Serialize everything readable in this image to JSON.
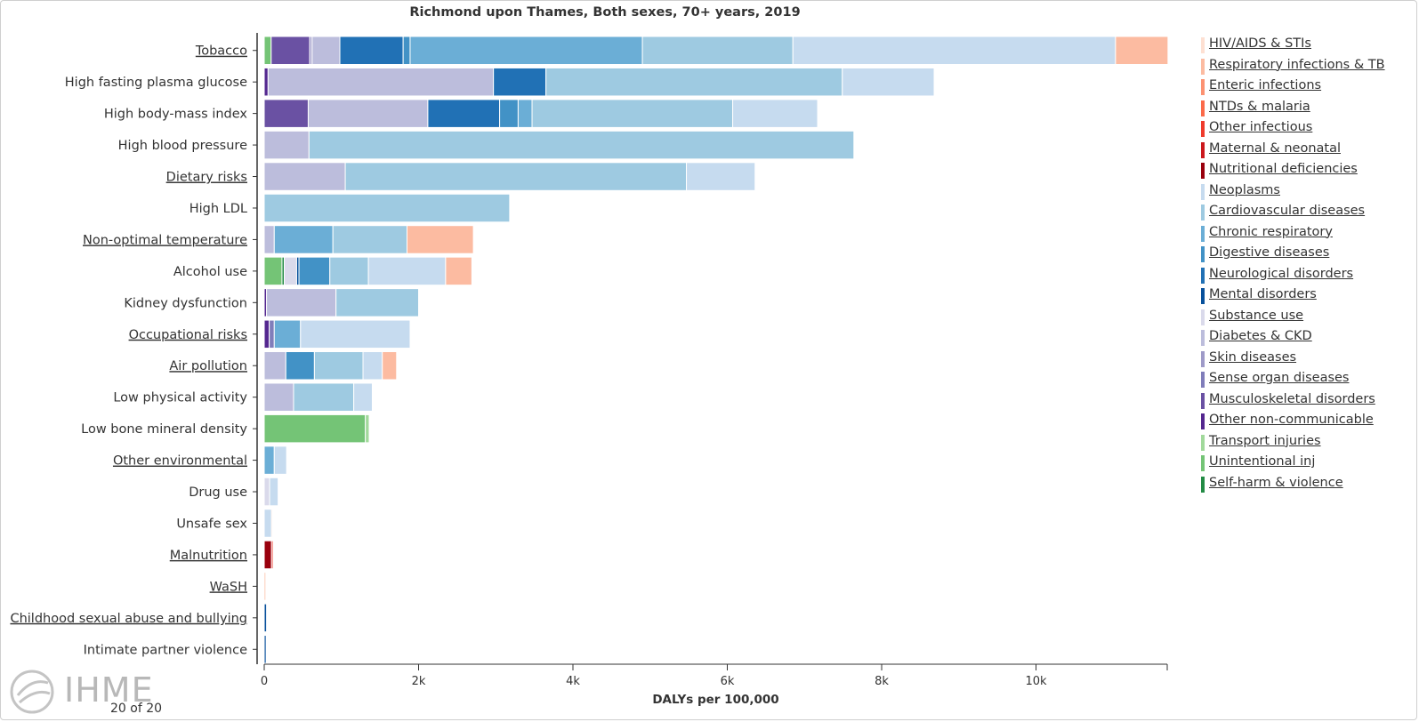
{
  "chart_data": {
    "type": "bar",
    "orientation": "horizontal",
    "stacked": true,
    "title": "Richmond upon Thames, Both sexes, 70+ years, 2019",
    "xlabel": "DALYs per 100,000",
    "ylabel": "",
    "xlim": [
      0,
      11700
    ],
    "x_ticks": [
      0,
      2000,
      4000,
      6000,
      8000,
      10000
    ],
    "x_tick_labels": [
      "0",
      "2k",
      "4k",
      "6k",
      "8k",
      "10k"
    ],
    "grid": false,
    "legend_position": "right",
    "categories": [
      "Tobacco",
      "High fasting plasma glucose",
      "High body-mass index",
      "High blood pressure",
      "Dietary risks",
      "High LDL",
      "Non-optimal temperature",
      "Alcohol use",
      "Kidney dysfunction",
      "Occupational risks",
      "Air pollution",
      "Low physical activity",
      "Low bone mineral density",
      "Other environmental",
      "Drug use",
      "Unsafe sex",
      "Malnutrition",
      "WaSH",
      "Childhood sexual abuse and bullying",
      "Intimate partner violence"
    ],
    "category_links": [
      true,
      false,
      false,
      false,
      true,
      false,
      true,
      false,
      false,
      true,
      true,
      false,
      false,
      true,
      false,
      false,
      true,
      true,
      true,
      false
    ],
    "series": [
      {
        "name": "HIV/AIDS & STIs",
        "color": "#fee0d2",
        "values": [
          0,
          0,
          0,
          0,
          0,
          0,
          0,
          0,
          0,
          0,
          0,
          0,
          0,
          0,
          0,
          15,
          0,
          0,
          0,
          0
        ]
      },
      {
        "name": "Respiratory infections & TB",
        "color": "#fcbba1",
        "values": [
          680,
          0,
          0,
          0,
          0,
          0,
          860,
          340,
          0,
          0,
          185,
          0,
          0,
          0,
          0,
          0,
          0,
          20,
          0,
          0
        ]
      },
      {
        "name": "Enteric infections",
        "color": "#fc9272",
        "values": [
          0,
          0,
          0,
          0,
          0,
          0,
          0,
          0,
          0,
          0,
          0,
          0,
          0,
          0,
          0,
          0,
          0,
          0,
          0,
          0
        ]
      },
      {
        "name": "NTDs & malaria",
        "color": "#fb6a4a",
        "values": [
          0,
          0,
          0,
          0,
          0,
          0,
          0,
          0,
          0,
          0,
          0,
          0,
          0,
          0,
          0,
          0,
          0,
          0,
          0,
          0
        ]
      },
      {
        "name": "Other infectious",
        "color": "#ef3b2c",
        "values": [
          0,
          0,
          0,
          0,
          0,
          0,
          0,
          0,
          0,
          0,
          0,
          0,
          0,
          0,
          0,
          0,
          20,
          0,
          0,
          0
        ]
      },
      {
        "name": "Maternal & neonatal",
        "color": "#cb181d",
        "values": [
          0,
          0,
          0,
          0,
          0,
          0,
          0,
          0,
          0,
          0,
          0,
          0,
          0,
          0,
          0,
          0,
          0,
          0,
          0,
          0
        ]
      },
      {
        "name": "Nutritional deficiencies",
        "color": "#99000d",
        "values": [
          0,
          0,
          0,
          0,
          0,
          0,
          0,
          0,
          0,
          0,
          0,
          0,
          0,
          0,
          0,
          0,
          95,
          0,
          0,
          0
        ]
      },
      {
        "name": "Neoplasms",
        "color": "#c6dbef",
        "values": [
          4180,
          1190,
          1100,
          0,
          890,
          0,
          0,
          1000,
          0,
          1420,
          250,
          240,
          0,
          160,
          110,
          95,
          0,
          0,
          0,
          0
        ]
      },
      {
        "name": "Cardiovascular diseases",
        "color": "#9ecae1",
        "values": [
          1950,
          3840,
          2600,
          7060,
          4420,
          3180,
          960,
          500,
          1070,
          0,
          630,
          780,
          0,
          0,
          0,
          0,
          0,
          0,
          0,
          0
        ]
      },
      {
        "name": "Chronic respiratory",
        "color": "#6baed6",
        "values": [
          3010,
          0,
          180,
          0,
          0,
          0,
          760,
          0,
          0,
          340,
          0,
          0,
          0,
          130,
          0,
          0,
          0,
          0,
          0,
          0
        ]
      },
      {
        "name": "Digestive diseases",
        "color": "#4292c6",
        "values": [
          90,
          0,
          240,
          0,
          0,
          0,
          0,
          400,
          0,
          0,
          370,
          0,
          0,
          0,
          0,
          0,
          0,
          0,
          0,
          0
        ]
      },
      {
        "name": "Neurological disorders",
        "color": "#2171b5",
        "values": [
          820,
          680,
          930,
          0,
          0,
          0,
          0,
          0,
          0,
          0,
          0,
          0,
          0,
          0,
          0,
          0,
          0,
          0,
          0,
          0
        ]
      },
      {
        "name": "Mental disorders",
        "color": "#08519c",
        "values": [
          0,
          0,
          0,
          0,
          0,
          0,
          0,
          30,
          0,
          0,
          0,
          0,
          0,
          0,
          0,
          0,
          0,
          0,
          30,
          25
        ]
      },
      {
        "name": "Substance use",
        "color": "#dadaeb",
        "values": [
          0,
          0,
          0,
          0,
          0,
          0,
          0,
          160,
          0,
          0,
          0,
          0,
          0,
          0,
          70,
          0,
          0,
          0,
          0,
          0
        ]
      },
      {
        "name": "Diabetes & CKD",
        "color": "#bcbddc",
        "values": [
          360,
          2920,
          1550,
          580,
          1050,
          0,
          130,
          0,
          900,
          0,
          280,
          380,
          0,
          0,
          0,
          0,
          0,
          0,
          0,
          0
        ]
      },
      {
        "name": "Skin diseases",
        "color": "#9e9ac8",
        "values": [
          30,
          0,
          0,
          0,
          0,
          0,
          0,
          0,
          0,
          0,
          0,
          0,
          0,
          0,
          0,
          0,
          0,
          0,
          0,
          0
        ]
      },
      {
        "name": "Sense organ diseases",
        "color": "#807dba",
        "values": [
          0,
          0,
          0,
          0,
          0,
          0,
          0,
          0,
          0,
          65,
          0,
          0,
          0,
          0,
          0,
          0,
          0,
          0,
          0,
          0
        ]
      },
      {
        "name": "Musculoskeletal disorders",
        "color": "#6a51a3",
        "values": [
          500,
          0,
          570,
          0,
          0,
          0,
          0,
          0,
          0,
          0,
          0,
          0,
          0,
          0,
          0,
          0,
          0,
          0,
          0,
          0
        ]
      },
      {
        "name": "Other non-communicable",
        "color": "#54278f",
        "values": [
          0,
          50,
          0,
          0,
          0,
          0,
          0,
          0,
          30,
          65,
          0,
          0,
          0,
          0,
          0,
          0,
          0,
          0,
          0,
          0
        ]
      },
      {
        "name": "Transport injuries",
        "color": "#a1d99b",
        "values": [
          0,
          0,
          0,
          0,
          0,
          0,
          0,
          0,
          0,
          0,
          0,
          0,
          50,
          0,
          0,
          0,
          0,
          0,
          0,
          0
        ]
      },
      {
        "name": "Unintentional inj",
        "color": "#74c476",
        "values": [
          90,
          0,
          0,
          0,
          0,
          0,
          0,
          230,
          0,
          0,
          0,
          0,
          1310,
          0,
          0,
          0,
          0,
          0,
          0,
          0
        ]
      },
      {
        "name": "Self-harm & violence",
        "color": "#238b45",
        "values": [
          0,
          0,
          0,
          0,
          0,
          0,
          0,
          30,
          0,
          0,
          0,
          0,
          0,
          0,
          0,
          0,
          0,
          0,
          0,
          0
        ]
      }
    ]
  },
  "legend_order": [
    "HIV/AIDS & STIs",
    "Respiratory infections & TB",
    "Enteric infections",
    "NTDs & malaria",
    "Other infectious",
    "Maternal & neonatal",
    "Nutritional deficiencies",
    "Neoplasms",
    "Cardiovascular diseases",
    "Chronic respiratory",
    "Digestive diseases",
    "Neurological disorders",
    "Mental disorders",
    "Substance use",
    "Diabetes & CKD",
    "Skin diseases",
    "Sense organ diseases",
    "Musculoskeletal disorders",
    "Other non-communicable",
    "Transport injuries",
    "Unintentional inj",
    "Self-harm & violence"
  ],
  "stack_order": [
    "Unintentional inj",
    "Self-harm & violence",
    "Nutritional deficiencies",
    "Other non-communicable",
    "Musculoskeletal disorders",
    "Sense organ diseases",
    "Skin diseases",
    "Diabetes & CKD",
    "Substance use",
    "Mental disorders",
    "Neurological disorders",
    "Digestive diseases",
    "Chronic respiratory",
    "Cardiovascular diseases",
    "Neoplasms",
    "Transport injuries",
    "Other infectious",
    "HIV/AIDS & STIs",
    "Respiratory infections & TB"
  ],
  "logo": {
    "text": "IHME",
    "icon": "ihme-leaf-icon"
  },
  "pager": {
    "text": "20 of 20"
  }
}
